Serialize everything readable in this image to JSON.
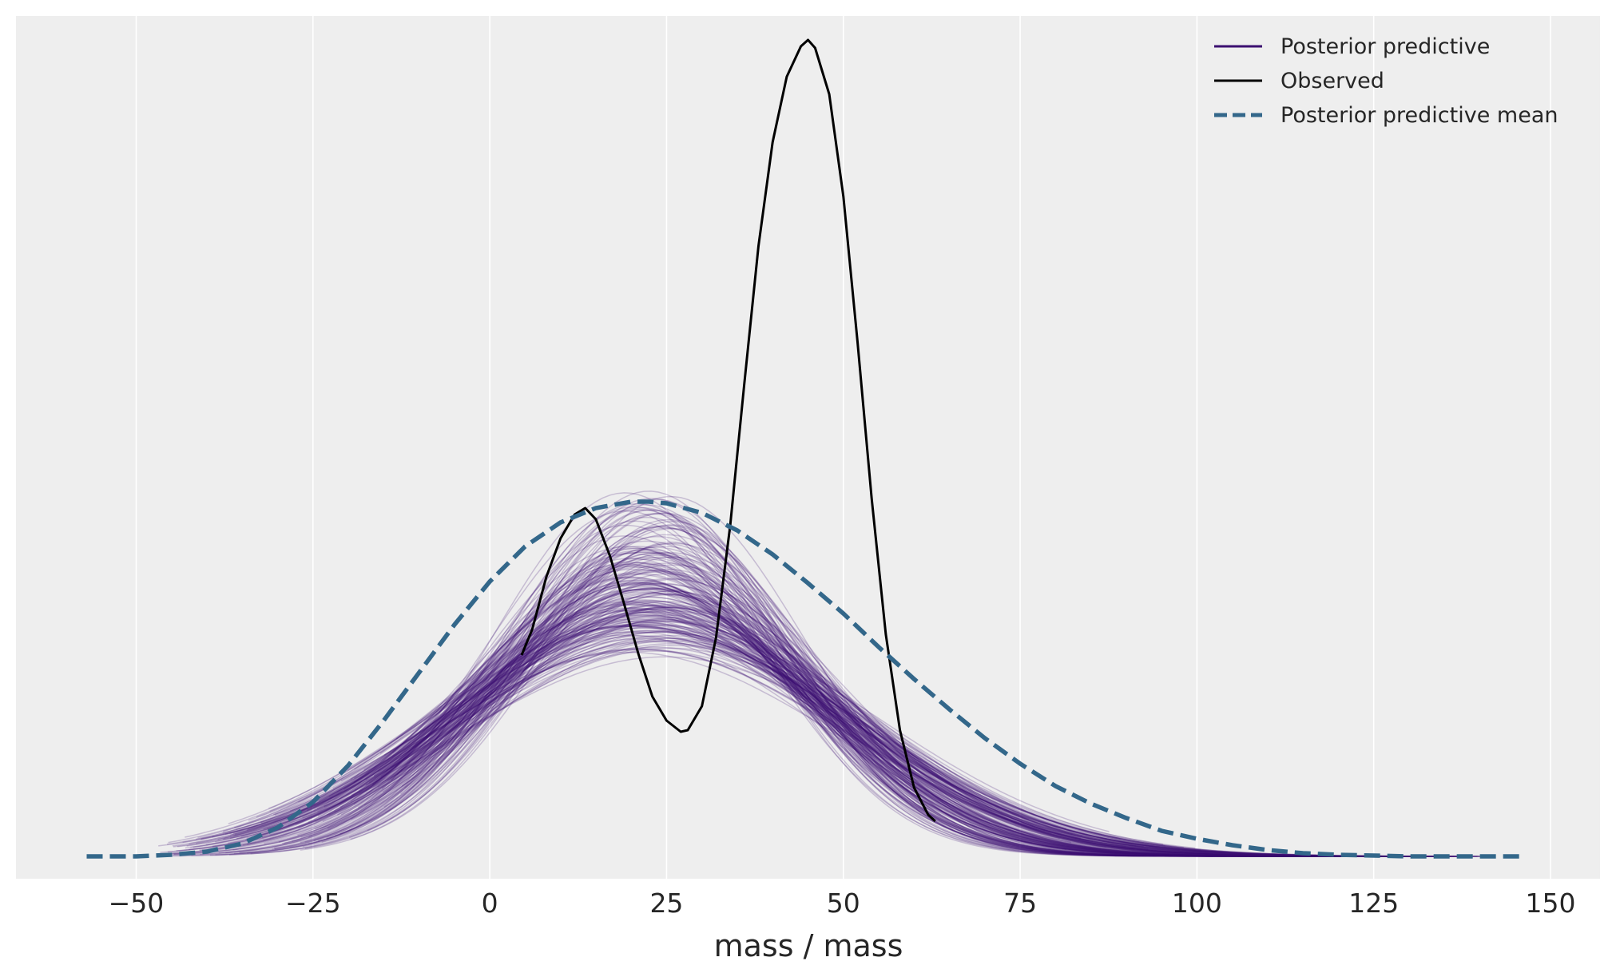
{
  "chart_data": {
    "type": "line",
    "title": "",
    "xlabel": "mass / mass",
    "ylabel": "",
    "xlim": [
      -67,
      157
    ],
    "ylim": [
      -0.0014,
      0.0526
    ],
    "x_ticks": [
      -50,
      -25,
      0,
      25,
      50,
      75,
      100,
      125,
      150
    ],
    "x_tick_labels": [
      "−50",
      "−25",
      "0",
      "25",
      "50",
      "75",
      "100",
      "125",
      "150"
    ],
    "y_ticks_visible": false,
    "grid": "vertical",
    "legend_position": "top-right",
    "colors": {
      "background": "#eeeeee",
      "grid": "#ffffff",
      "posterior_predictive": "#3b0f70",
      "observed": "#000000",
      "posterior_predictive_mean": "#33678a"
    },
    "series": [
      {
        "name": "Posterior predictive",
        "kind": "sample-density-band",
        "draws": 200,
        "mean_center": 22.5,
        "sd_range": [
          18.5,
          29.5
        ],
        "x_range": [
          -57,
          146
        ]
      },
      {
        "name": "Observed",
        "kind": "density",
        "x": [
          4.5,
          6,
          8,
          10,
          12,
          13.5,
          15,
          17,
          19,
          21,
          23,
          25,
          27,
          28,
          30,
          32,
          34,
          36,
          38,
          40,
          42,
          44,
          45,
          46,
          48,
          50,
          52,
          54,
          56,
          58,
          60,
          62,
          63
        ],
        "y": [
          0.0126,
          0.0142,
          0.0175,
          0.0199,
          0.0214,
          0.0218,
          0.0211,
          0.0188,
          0.0158,
          0.0127,
          0.01,
          0.0085,
          0.0078,
          0.0079,
          0.0094,
          0.0137,
          0.0207,
          0.0296,
          0.0382,
          0.0447,
          0.0488,
          0.0507,
          0.0511,
          0.0506,
          0.0477,
          0.0413,
          0.0322,
          0.0224,
          0.0139,
          0.0079,
          0.0043,
          0.0026,
          0.0022
        ]
      },
      {
        "name": "Posterior predictive mean",
        "kind": "density",
        "x": [
          -57,
          -50,
          -45,
          -40,
          -35,
          -30,
          -25,
          -20,
          -15,
          -10,
          -5,
          0,
          5,
          10,
          15,
          20,
          22.5,
          25,
          30,
          35,
          40,
          45,
          50,
          55,
          60,
          65,
          70,
          75,
          80,
          85,
          90,
          95,
          100,
          105,
          110,
          115,
          120,
          130,
          140,
          146
        ],
        "y": [
          0.0,
          0.0,
          0.0001,
          0.0003,
          0.0008,
          0.0018,
          0.0034,
          0.0057,
          0.0085,
          0.0115,
          0.0145,
          0.0172,
          0.0194,
          0.0209,
          0.0218,
          0.0222,
          0.0222,
          0.0221,
          0.0215,
          0.0204,
          0.0189,
          0.0171,
          0.0152,
          0.0131,
          0.0111,
          0.0092,
          0.0074,
          0.0058,
          0.0044,
          0.0033,
          0.0024,
          0.0016,
          0.0011,
          0.0007,
          0.0004,
          0.0002,
          0.0001,
          0.0,
          0.0,
          0.0
        ]
      }
    ]
  }
}
